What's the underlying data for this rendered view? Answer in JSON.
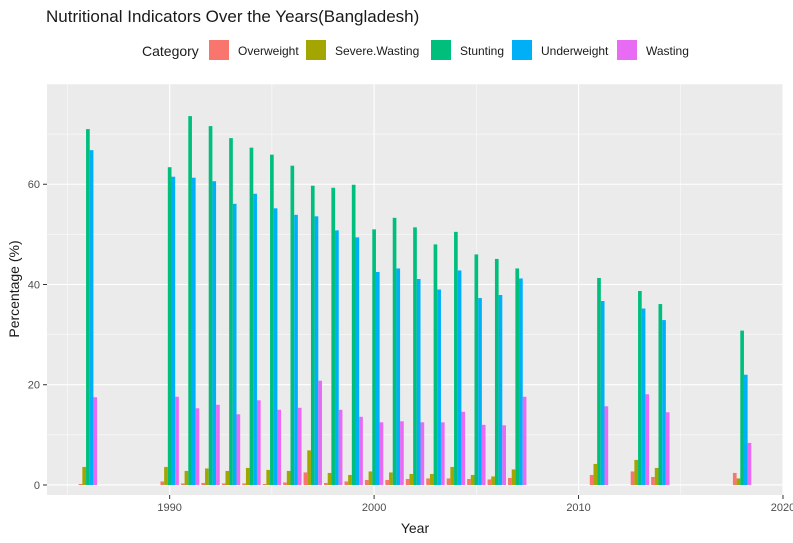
{
  "chart_data": {
    "type": "bar",
    "title": "Nutritional Indicators Over the Years(Bangladesh)",
    "xlabel": "Year",
    "ylabel": "Percentage (%)",
    "xlim": [
      1984,
      2020
    ],
    "ylim": [
      -2,
      80
    ],
    "x_ticks": [
      1990,
      2000,
      2010,
      2020
    ],
    "y_ticks": [
      0,
      20,
      40,
      60
    ],
    "legend_title": "Category",
    "legend_position": "top",
    "grid": true,
    "panel_background": "#EBEBEB",
    "series": [
      {
        "name": "Overweight",
        "color": "#F8766D",
        "points": [
          [
            1986,
            0.2
          ],
          [
            1990,
            0.7
          ],
          [
            1991,
            0.3
          ],
          [
            1992,
            0.4
          ],
          [
            1993,
            0.3
          ],
          [
            1994,
            0.3
          ],
          [
            1995,
            0.2
          ],
          [
            1996,
            0.5
          ],
          [
            1997,
            2.5
          ],
          [
            1998,
            0.4
          ],
          [
            1999,
            0.7
          ],
          [
            2000,
            1.0
          ],
          [
            2001,
            1.0
          ],
          [
            2002,
            1.2
          ],
          [
            2003,
            1.3
          ],
          [
            2004,
            1.3
          ],
          [
            2005,
            1.2
          ],
          [
            2006,
            1.1
          ],
          [
            2007,
            1.4
          ],
          [
            2011,
            2.0
          ],
          [
            2013,
            2.7
          ],
          [
            2014,
            1.6
          ],
          [
            2018,
            2.4
          ]
        ]
      },
      {
        "name": "Severe.Wasting",
        "color": "#A3A500",
        "points": [
          [
            1986,
            3.6
          ],
          [
            1990,
            3.6
          ],
          [
            1991,
            2.8
          ],
          [
            1992,
            3.3
          ],
          [
            1993,
            2.8
          ],
          [
            1994,
            3.4
          ],
          [
            1995,
            3.0
          ],
          [
            1996,
            2.8
          ],
          [
            1997,
            6.9
          ],
          [
            1998,
            2.4
          ],
          [
            1999,
            2.0
          ],
          [
            2000,
            2.7
          ],
          [
            2001,
            2.5
          ],
          [
            2002,
            2.2
          ],
          [
            2003,
            2.2
          ],
          [
            2004,
            3.6
          ],
          [
            2005,
            2.0
          ],
          [
            2006,
            1.7
          ],
          [
            2007,
            3.1
          ],
          [
            2011,
            4.2
          ],
          [
            2013,
            5.0
          ],
          [
            2014,
            3.4
          ],
          [
            2018,
            1.3
          ]
        ]
      },
      {
        "name": "Stunting",
        "color": "#00BF7D",
        "points": [
          [
            1986,
            71.0
          ],
          [
            1990,
            63.4
          ],
          [
            1991,
            73.6
          ],
          [
            1992,
            71.6
          ],
          [
            1993,
            69.2
          ],
          [
            1994,
            67.3
          ],
          [
            1995,
            65.9
          ],
          [
            1996,
            63.7
          ],
          [
            1997,
            59.7
          ],
          [
            1998,
            59.3
          ],
          [
            1999,
            59.9
          ],
          [
            2000,
            51.0
          ],
          [
            2001,
            53.3
          ],
          [
            2002,
            51.4
          ],
          [
            2003,
            48.0
          ],
          [
            2004,
            50.5
          ],
          [
            2005,
            46.0
          ],
          [
            2006,
            45.1
          ],
          [
            2007,
            43.2
          ],
          [
            2011,
            41.3
          ],
          [
            2013,
            38.7
          ],
          [
            2014,
            36.1
          ],
          [
            2018,
            30.8
          ]
        ]
      },
      {
        "name": "Underweight",
        "color": "#00B0F6",
        "points": [
          [
            1986,
            66.8
          ],
          [
            1990,
            61.5
          ],
          [
            1991,
            61.3
          ],
          [
            1992,
            60.6
          ],
          [
            1993,
            56.1
          ],
          [
            1994,
            58.1
          ],
          [
            1995,
            55.2
          ],
          [
            1996,
            53.9
          ],
          [
            1997,
            53.6
          ],
          [
            1998,
            50.8
          ],
          [
            1999,
            49.4
          ],
          [
            2000,
            42.5
          ],
          [
            2001,
            43.2
          ],
          [
            2002,
            41.1
          ],
          [
            2003,
            39.0
          ],
          [
            2004,
            42.8
          ],
          [
            2005,
            37.3
          ],
          [
            2006,
            37.9
          ],
          [
            2007,
            41.2
          ],
          [
            2011,
            36.7
          ],
          [
            2013,
            35.2
          ],
          [
            2014,
            32.9
          ],
          [
            2018,
            22.0
          ]
        ]
      },
      {
        "name": "Wasting",
        "color": "#E76BF3",
        "points": [
          [
            1986,
            17.5
          ],
          [
            1990,
            17.6
          ],
          [
            1991,
            15.3
          ],
          [
            1992,
            16.0
          ],
          [
            1993,
            14.1
          ],
          [
            1994,
            16.9
          ],
          [
            1995,
            15.0
          ],
          [
            1996,
            15.4
          ],
          [
            1997,
            20.8
          ],
          [
            1998,
            15.0
          ],
          [
            1999,
            13.6
          ],
          [
            2000,
            12.5
          ],
          [
            2001,
            12.7
          ],
          [
            2002,
            12.5
          ],
          [
            2003,
            12.5
          ],
          [
            2004,
            14.6
          ],
          [
            2005,
            12.0
          ],
          [
            2006,
            11.9
          ],
          [
            2007,
            17.6
          ],
          [
            2011,
            15.7
          ],
          [
            2013,
            18.1
          ],
          [
            2014,
            14.5
          ],
          [
            2018,
            8.4
          ]
        ]
      }
    ]
  }
}
